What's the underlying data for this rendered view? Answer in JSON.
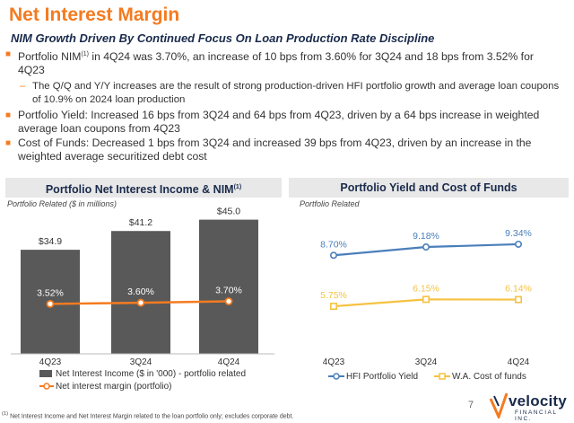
{
  "header": {
    "title": "Net Interest Margin",
    "subtitle": "NIM Growth Driven By Continued Focus On Loan Production Rate Discipline"
  },
  "bullets": [
    {
      "pre": "Portfolio NIM",
      "sup": "(1)",
      "post": " in 4Q24 was 3.70%, an increase of 10 bps from 3.60% for 3Q24 and 18 bps from 3.52% for 4Q23"
    },
    {
      "sub": true,
      "text": "The Q/Q and Y/Y increases are the result of strong production-driven HFI portfolio growth and average loan coupons of 10.9% on 2024 loan production"
    },
    {
      "text": "Portfolio Yield: Increased 16 bps from 3Q24 and 64 bps from 4Q23, driven by a 64 bps increase in weighted average loan coupons from 4Q23"
    },
    {
      "text": "Cost of Funds: Decreased 1 bps from 3Q24 and increased 39 bps from 4Q23, driven by an increase in the weighted average securitized debt cost"
    }
  ],
  "left_panel": {
    "title": "Portfolio Net Interest Income & NIM",
    "title_sup": "(1)",
    "note": "Portfolio Related ($ in millions)"
  },
  "right_panel": {
    "title": "Portfolio Yield and Cost of Funds",
    "note": "Portfolio Related"
  },
  "chart_data": [
    {
      "type": "bar",
      "categories": [
        "4Q23",
        "3Q24",
        "4Q24"
      ],
      "series": [
        {
          "name": "Net Interest Income ($ in '000) - portfolio related",
          "values": [
            34.9,
            41.2,
            45.0
          ],
          "labels": [
            "$34.9",
            "$41.2",
            "$45.0"
          ],
          "color": "#595959"
        },
        {
          "name": "Net interest margin (portfolio)",
          "type": "line",
          "values": [
            3.52,
            3.6,
            3.7
          ],
          "labels": [
            "3.52%",
            "3.60%",
            "3.70%"
          ],
          "color": "#f47b20"
        }
      ],
      "ylim": [
        0,
        50
      ]
    },
    {
      "type": "line",
      "categories": [
        "4Q23",
        "3Q24",
        "4Q24"
      ],
      "series": [
        {
          "name": "HFI Portfolio Yield",
          "values": [
            8.7,
            9.18,
            9.34
          ],
          "labels": [
            "8.70%",
            "9.18%",
            "9.34%"
          ],
          "color": "#4a7ebb"
        },
        {
          "name": "W.A. Cost of funds",
          "values": [
            5.75,
            6.15,
            6.14
          ],
          "labels": [
            "5.75%",
            "6.15%",
            "6.14%"
          ],
          "color": "#f5c242"
        }
      ],
      "ylim": [
        3,
        11
      ]
    }
  ],
  "footer": {
    "footnote": "Net Interest Income and Net Interest Margin related to the loan portfolio only; excludes corporate debt.",
    "footnote_sup": "(1)",
    "page": "7",
    "logo_word": "velocity",
    "logo_sub": "FINANCIAL INC."
  }
}
